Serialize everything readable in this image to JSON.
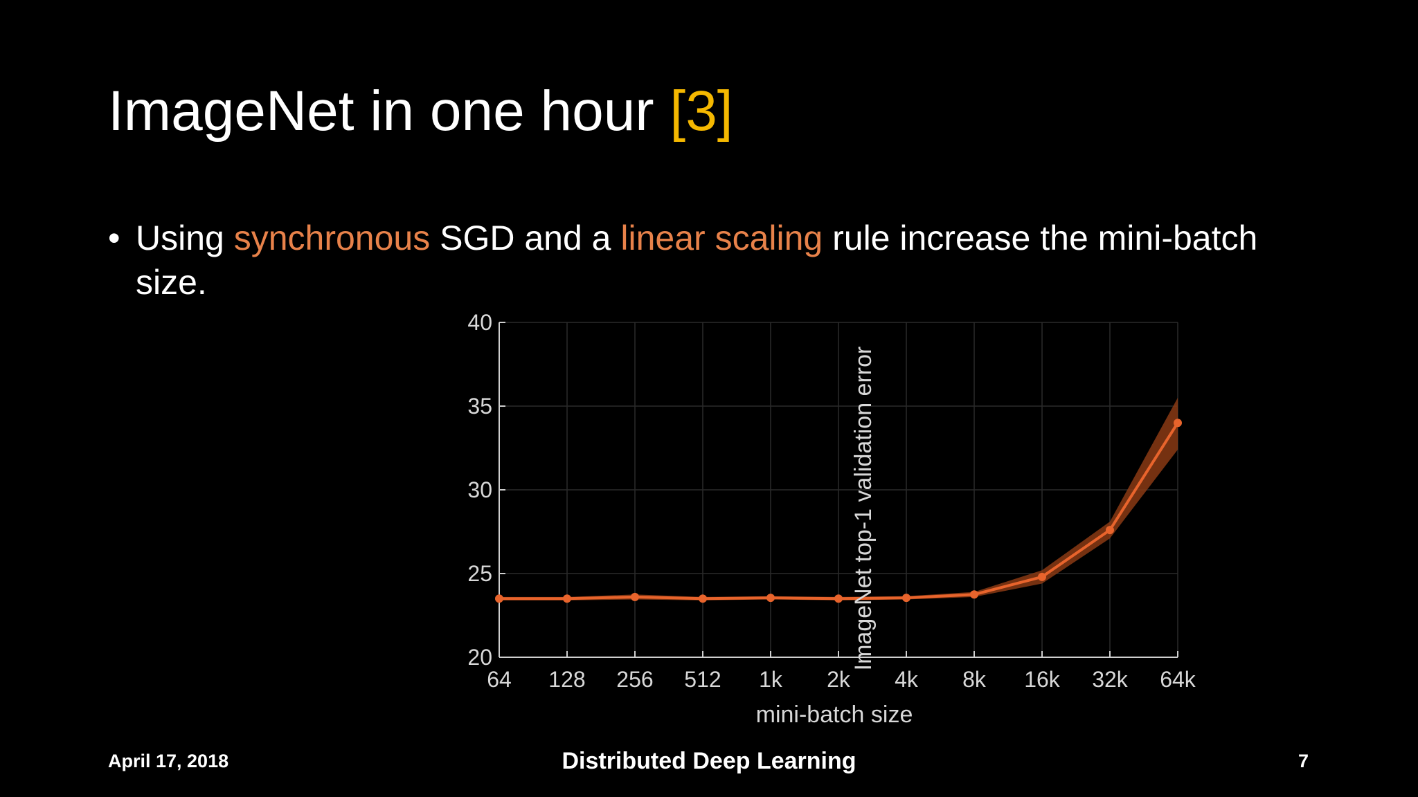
{
  "slide": {
    "title": "ImageNet in one hour",
    "title_ref": "[3]",
    "bullet": {
      "part1": "Using ",
      "highlight1": "synchronous",
      "part2": " SGD and a ",
      "highlight2": "linear scaling",
      "part3": " rule increase the mini-batch size."
    },
    "footer": {
      "date": "April 17, 2018",
      "title": "Distributed Deep Learning",
      "page": "7"
    }
  },
  "colors": {
    "background": "#000000",
    "text": "#ffffff",
    "accent_ref": "#f5b800",
    "accent_highlight": "#e8824a",
    "series": "#e8642c",
    "band": "#8a3a14"
  },
  "chart_data": {
    "type": "line",
    "title": "",
    "xlabel": "mini-batch size",
    "ylabel": "ImageNet top-1 validation error",
    "categories": [
      "64",
      "128",
      "256",
      "512",
      "1k",
      "2k",
      "4k",
      "8k",
      "16k",
      "32k",
      "64k"
    ],
    "ylim": [
      20,
      40
    ],
    "yticks": [
      20,
      25,
      30,
      35,
      40
    ],
    "grid": true,
    "series": [
      {
        "values": [
          23.5,
          23.5,
          23.6,
          23.5,
          23.55,
          23.5,
          23.55,
          23.75,
          24.8,
          27.6,
          34.0
        ],
        "band_low": [
          23.4,
          23.4,
          23.45,
          23.4,
          23.45,
          23.4,
          23.45,
          23.6,
          24.4,
          27.1,
          32.4
        ],
        "band_high": [
          23.6,
          23.6,
          23.75,
          23.6,
          23.65,
          23.6,
          23.65,
          23.9,
          25.2,
          28.1,
          35.5
        ]
      }
    ]
  }
}
